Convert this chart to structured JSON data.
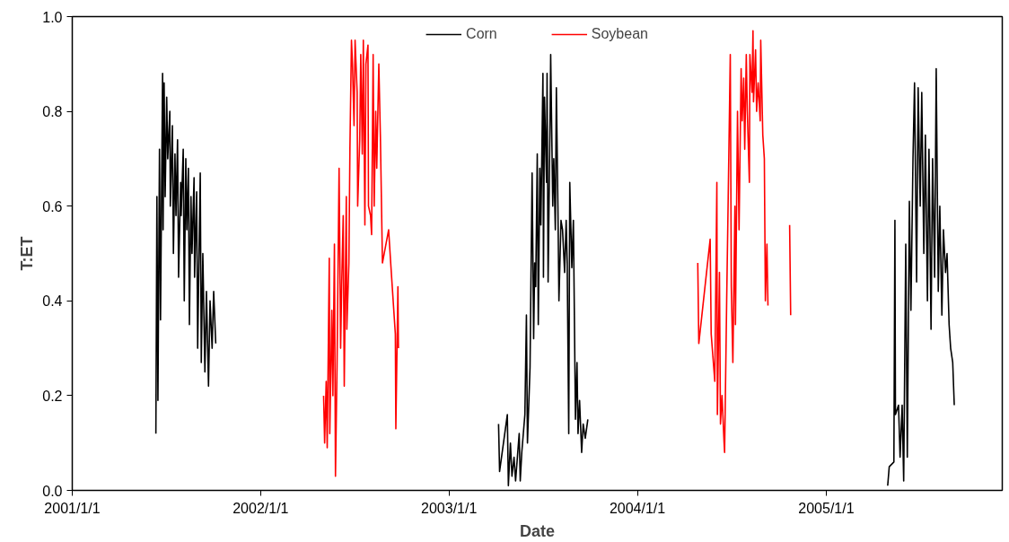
{
  "chart_data": {
    "type": "line",
    "xlabel": "Date",
    "ylabel": "T:ET",
    "xlim": [
      "2001-01-01",
      "2005-12-08"
    ],
    "ylim": [
      0,
      1
    ],
    "xticks": [
      {
        "value": "2001-01-01",
        "label": "2001/1/1"
      },
      {
        "value": "2002-01-01",
        "label": "2002/1/1"
      },
      {
        "value": "2003-01-01",
        "label": "2003/1/1"
      },
      {
        "value": "2004-01-01",
        "label": "2004/1/1"
      },
      {
        "value": "2005-01-01",
        "label": "2005/1/1"
      }
    ],
    "yticks": [
      {
        "value": 0,
        "label": "0.0"
      },
      {
        "value": 0.2,
        "label": "0.2"
      },
      {
        "value": 0.4,
        "label": "0.4"
      },
      {
        "value": 0.6,
        "label": "0.6"
      },
      {
        "value": 0.8,
        "label": "0.8"
      },
      {
        "value": 1,
        "label": "1.0"
      }
    ],
    "grid": false,
    "legend": "top",
    "marker": "none",
    "line_style": "solid",
    "series": [
      {
        "name": "Corn",
        "color": "#000000",
        "x": [
          "2001-06-12",
          "2001-06-14",
          "2001-06-16",
          "2001-06-19",
          "2001-06-21",
          "2001-06-25",
          "2001-06-26",
          "2001-06-28",
          "2001-06-30",
          "2001-07-03",
          "2001-07-05",
          "2001-07-09",
          "2001-07-10",
          "2001-07-14",
          "2001-07-16",
          "2001-07-19",
          "2001-07-21",
          "2001-07-24",
          "2001-07-26",
          "2001-07-30",
          "2001-07-31",
          "2001-08-04",
          "2001-08-06",
          "2001-08-09",
          "2001-08-11",
          "2001-08-14",
          "2001-08-16",
          "2001-08-19",
          "2001-08-21",
          "2001-08-25",
          "2001-08-26",
          "2001-08-30",
          "2001-09-01",
          "2001-09-06",
          "2001-09-08",
          "2001-09-11",
          "2001-09-15",
          "2001-09-18",
          "2001-09-22",
          "2001-09-25",
          "2001-09-29",
          "2001-10-02",
          "2001-10-06",
          "2002-06-01",
          "2003-04-07",
          "2003-04-09",
          "2003-04-24",
          "2003-04-26",
          "2003-04-30",
          "2003-05-03",
          "2003-05-07",
          "2003-05-10",
          "2003-05-17",
          "2003-05-19",
          "2003-05-22",
          "2003-05-28",
          "2003-05-31",
          "2003-06-02",
          "2003-06-07",
          "2003-06-11",
          "2003-06-14",
          "2003-06-16",
          "2003-06-18",
          "2003-06-21",
          "2003-06-23",
          "2003-06-26",
          "2003-06-28",
          "2003-07-02",
          "2003-07-03",
          "2003-07-05",
          "2003-07-09",
          "2003-07-10",
          "2003-07-12",
          "2003-07-16",
          "2003-07-17",
          "2003-07-21",
          "2003-07-23",
          "2003-07-26",
          "2003-07-28",
          "2003-07-31",
          "2003-08-02",
          "2003-08-06",
          "2003-08-09",
          "2003-08-13",
          "2003-08-16",
          "2003-08-18",
          "2003-08-21",
          "2003-08-23",
          "2003-08-27",
          "2003-08-30",
          "2003-09-03",
          "2003-09-06",
          "2003-09-08",
          "2003-09-11",
          "2003-09-15",
          "2003-09-18",
          "2003-09-22",
          "2003-09-27",
          "2004-06-01",
          "2005-04-30",
          "2005-05-03",
          "2005-05-12",
          "2005-05-14",
          "2005-05-15",
          "2005-05-21",
          "2005-05-24",
          "2005-05-28",
          "2005-05-31",
          "2005-06-04",
          "2005-06-07",
          "2005-06-11",
          "2005-06-14",
          "2005-06-18",
          "2005-06-21",
          "2005-06-25",
          "2005-06-28",
          "2005-07-02",
          "2005-07-05",
          "2005-07-09",
          "2005-07-12",
          "2005-07-16",
          "2005-07-19",
          "2005-07-23",
          "2005-07-26",
          "2005-07-30",
          "2005-08-02",
          "2005-08-06",
          "2005-08-09",
          "2005-08-13",
          "2005-08-16",
          "2005-08-20",
          "2005-08-23",
          "2005-08-27",
          "2005-08-30",
          "2005-09-03",
          "2005-09-06"
        ],
        "values": [
          0.12,
          0.62,
          0.19,
          0.72,
          0.36,
          0.88,
          0.55,
          0.86,
          0.62,
          0.83,
          0.7,
          0.8,
          0.6,
          0.77,
          0.5,
          0.71,
          0.58,
          0.74,
          0.45,
          0.65,
          0.58,
          0.72,
          0.4,
          0.7,
          0.55,
          0.68,
          0.35,
          0.62,
          0.5,
          0.66,
          0.45,
          0.63,
          0.3,
          0.67,
          0.27,
          0.5,
          0.25,
          0.42,
          0.22,
          0.4,
          0.3,
          0.42,
          0.31,
          null,
          0.14,
          0.04,
          0.16,
          0.01,
          0.1,
          0.03,
          0.07,
          0.02,
          0.12,
          0.02,
          0.08,
          0.16,
          0.37,
          0.1,
          0.26,
          0.67,
          0.32,
          0.48,
          0.43,
          0.71,
          0.35,
          0.68,
          0.56,
          0.88,
          0.45,
          0.83,
          0.65,
          0.88,
          0.44,
          0.8,
          0.92,
          0.6,
          0.7,
          0.55,
          0.85,
          0.6,
          0.4,
          0.57,
          0.55,
          0.46,
          0.57,
          0.48,
          0.12,
          0.65,
          0.47,
          0.57,
          0.15,
          0.27,
          0.12,
          0.19,
          0.08,
          0.14,
          0.11,
          0.15,
          null,
          0.01,
          0.05,
          0.06,
          0.57,
          0.16,
          0.18,
          0.07,
          0.18,
          0.02,
          0.52,
          0.07,
          0.61,
          0.38,
          0.7,
          0.86,
          0.44,
          0.85,
          0.6,
          0.84,
          0.5,
          0.75,
          0.4,
          0.72,
          0.34,
          0.7,
          0.45,
          0.89,
          0.42,
          0.6,
          0.37,
          0.55,
          0.46,
          0.5,
          0.35,
          0.3,
          0.27,
          0.18
        ]
      },
      {
        "name": "Soybean",
        "color": "#ff0000",
        "x": [
          "2002-05-03",
          "2002-05-05",
          "2002-05-08",
          "2002-05-10",
          "2002-05-14",
          "2002-05-15",
          "2002-05-19",
          "2002-05-21",
          "2002-05-24",
          "2002-05-26",
          "2002-05-29",
          "2002-06-02",
          "2002-06-05",
          "2002-06-07",
          "2002-06-10",
          "2002-06-12",
          "2002-06-16",
          "2002-06-17",
          "2002-06-21",
          "2002-06-23",
          "2002-06-26",
          "2002-06-28",
          "2002-07-01",
          "2002-07-03",
          "2002-07-07",
          "2002-07-08",
          "2002-07-12",
          "2002-07-14",
          "2002-07-17",
          "2002-07-19",
          "2002-07-22",
          "2002-07-24",
          "2002-07-28",
          "2002-07-29",
          "2002-08-02",
          "2002-08-04",
          "2002-08-07",
          "2002-08-09",
          "2002-08-12",
          "2002-08-14",
          "2002-08-18",
          "2002-08-21",
          "2002-08-25",
          "2002-09-06",
          "2002-09-10",
          "2002-09-19",
          "2002-09-20",
          "2002-09-24",
          "2002-09-25",
          "2003-06-01",
          "2004-04-27",
          "2004-04-29",
          "2004-05-21",
          "2004-05-23",
          "2004-05-30",
          "2004-06-03",
          "2004-06-04",
          "2004-06-08",
          "2004-06-10",
          "2004-06-13",
          "2004-06-17",
          "2004-06-18",
          "2004-06-22",
          "2004-06-25",
          "2004-06-29",
          "2004-07-01",
          "2004-07-04",
          "2004-07-08",
          "2004-07-09",
          "2004-07-13",
          "2004-07-16",
          "2004-07-20",
          "2004-07-22",
          "2004-07-25",
          "2004-07-27",
          "2004-07-30",
          "2004-08-01",
          "2004-08-05",
          "2004-08-06",
          "2004-08-10",
          "2004-08-12",
          "2004-08-13",
          "2004-08-17",
          "2004-08-19",
          "2004-08-22",
          "2004-08-26",
          "2004-08-27",
          "2004-08-31",
          "2004-09-03",
          "2004-09-05",
          "2004-09-08",
          "2004-09-10",
          "2004-10-01",
          "2004-10-22",
          "2004-10-24"
        ],
        "values": [
          0.2,
          0.1,
          0.23,
          0.09,
          0.49,
          0.12,
          0.38,
          0.2,
          0.52,
          0.03,
          0.26,
          0.68,
          0.3,
          0.43,
          0.58,
          0.22,
          0.62,
          0.34,
          0.48,
          0.72,
          0.95,
          0.9,
          0.77,
          0.95,
          0.84,
          0.6,
          0.74,
          0.92,
          0.71,
          0.95,
          0.56,
          0.9,
          0.94,
          0.6,
          0.58,
          0.54,
          0.92,
          0.6,
          0.8,
          0.68,
          0.9,
          0.75,
          0.48,
          0.55,
          0.48,
          0.33,
          0.13,
          0.43,
          0.3,
          null,
          0.48,
          0.31,
          0.53,
          0.33,
          0.23,
          0.65,
          0.16,
          0.46,
          0.14,
          0.2,
          0.1,
          0.08,
          0.4,
          0.62,
          0.92,
          0.43,
          0.27,
          0.6,
          0.35,
          0.8,
          0.55,
          0.89,
          0.78,
          0.87,
          0.72,
          0.92,
          0.8,
          0.65,
          0.92,
          0.84,
          0.97,
          0.82,
          0.93,
          0.8,
          0.86,
          0.78,
          0.95,
          0.75,
          0.7,
          0.4,
          0.52,
          0.39,
          null,
          0.56,
          0.37
        ]
      }
    ]
  }
}
